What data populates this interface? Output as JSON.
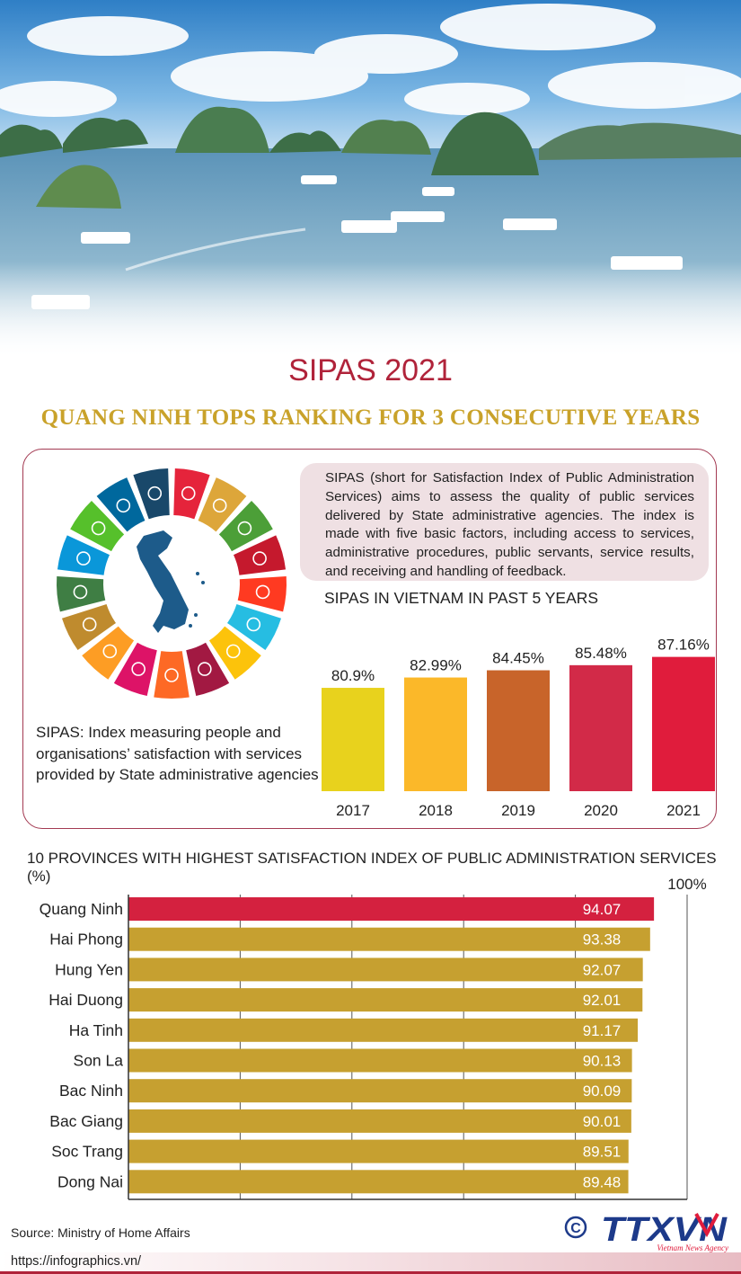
{
  "title": "SIPAS 2021",
  "subtitle": "QUANG NINH TOPS RANKING FOR 3 CONSECUTIVE YEARS",
  "description": "SIPAS (short for Satisfaction Index of Public Administration Services) aims to assess the quality of public services delivered by State administrative agencies. The index is made with five basic factors, including access to services, administrative procedures, public servants, service results, and receiving and handling of feedback.",
  "definition": "SIPAS: Index measuring people and organisations’ satisfaction with services provided by State administrative agencies",
  "colors": {
    "brand_red": "#b0233a",
    "gold": "#c9a22a",
    "province_bar": "#c6a030",
    "highlight_bar": "#d4213f",
    "sdg_wheel": [
      "#e5243b",
      "#dda63a",
      "#4c9f38",
      "#c5192d",
      "#ff3a21",
      "#26bde2",
      "#fcc30b",
      "#a21942",
      "#fd6925",
      "#dd1367",
      "#fd9d24",
      "#bf8b2e",
      "#3f7e44",
      "#0a97d9",
      "#56c02b",
      "#00689d",
      "#19486a"
    ]
  },
  "icons": [
    "sdg-wheel-icon",
    "vietnam-map-icon",
    "copyright-icon",
    "ttxvn-logo-icon"
  ],
  "chart_data": [
    {
      "type": "bar",
      "title": "SIPAS IN VIETNAM IN PAST 5 YEARS",
      "categories": [
        "2017",
        "2018",
        "2019",
        "2020",
        "2021"
      ],
      "values": [
        80.9,
        82.99,
        84.45,
        85.48,
        87.16
      ],
      "value_labels": [
        "80.9%",
        "82.99%",
        "84.45%",
        "85.48%",
        "87.16%"
      ],
      "bar_colors": [
        "#e8d21d",
        "#fbb829",
        "#c8642a",
        "#d22a48",
        "#e01c3c"
      ],
      "ylim": [
        60,
        90
      ],
      "grid": false
    },
    {
      "type": "bar",
      "orientation": "horizontal",
      "title": "10 PROVINCES WITH HIGHEST SATISFACTION INDEX OF PUBLIC ADMINISTRATION SERVICES (%)",
      "categories": [
        "Quang Ninh",
        "Hai Phong",
        "Hung Yen",
        "Hai Duong",
        "Ha Tinh",
        "Son La",
        "Bac Ninh",
        "Bac Giang",
        "Soc Trang",
        "Dong Nai"
      ],
      "values": [
        94.07,
        93.38,
        92.07,
        92.01,
        91.17,
        90.13,
        90.09,
        90.01,
        89.51,
        89.48
      ],
      "value_labels": [
        "94.07",
        "93.38",
        "92.07",
        "92.01",
        "91.17",
        "90.13",
        "90.09",
        "90.01",
        "89.51",
        "89.48"
      ],
      "axis_max_label": "100%",
      "xlim": [
        0,
        100
      ],
      "grid": true
    }
  ],
  "source": "Source: Ministry of Home Affairs",
  "logo_text": "TTXVN",
  "logo_subtext": "Vietnam News Agency",
  "copyright_symbol": "©",
  "url": "https://infographics.vn/"
}
